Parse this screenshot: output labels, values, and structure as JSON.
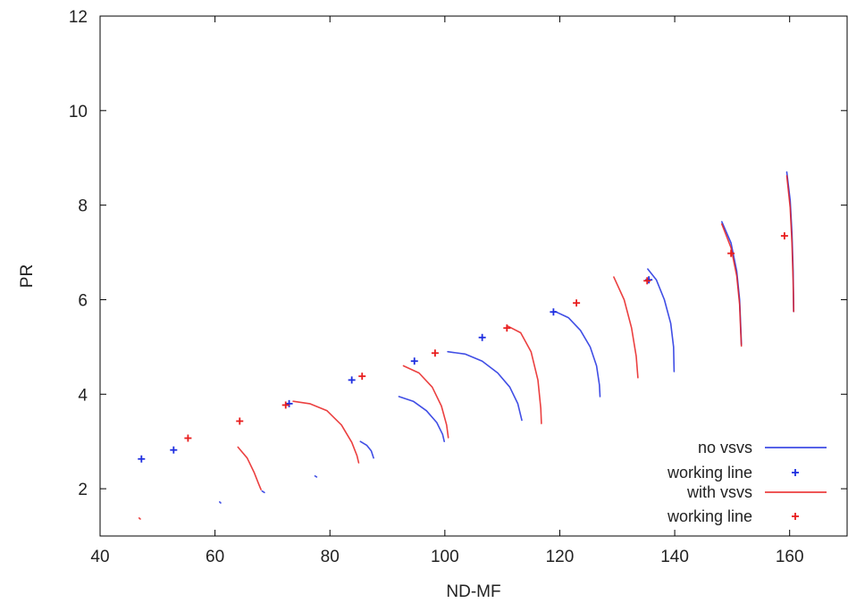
{
  "chart_data": {
    "type": "line",
    "title": "",
    "xlabel": "ND-MF",
    "ylabel": "PR",
    "xlim": [
      40,
      170
    ],
    "ylim": [
      1,
      12
    ],
    "xticks": [
      "40",
      "60",
      "80",
      "100",
      "120",
      "140",
      "160"
    ],
    "yticks": [
      "2",
      "4",
      "6",
      "8",
      "10",
      "12"
    ],
    "grid": false,
    "legend_position": "bottom-right",
    "colors": {
      "no_vsvs": "#1f2fe0",
      "with_vsvs": "#e81e1e",
      "overlap": "#8a2255"
    },
    "series": [
      {
        "name": "no vsvs",
        "style": "line",
        "curves": [
          [
            [
              60.8,
              1.72
            ],
            [
              61.0,
              1.7
            ]
          ],
          [
            [
              68.2,
              1.95
            ],
            [
              68.6,
              1.92
            ]
          ],
          [
            [
              77.4,
              2.27
            ],
            [
              77.7,
              2.25
            ]
          ],
          [
            [
              85.3,
              3.0
            ],
            [
              86.4,
              2.92
            ],
            [
              87.2,
              2.8
            ],
            [
              87.6,
              2.65
            ]
          ],
          [
            [
              92.0,
              3.95
            ],
            [
              94.5,
              3.85
            ],
            [
              96.8,
              3.65
            ],
            [
              98.6,
              3.4
            ],
            [
              99.6,
              3.15
            ],
            [
              99.9,
              3.0
            ]
          ],
          [
            [
              100.5,
              4.9
            ],
            [
              103.5,
              4.85
            ],
            [
              106.5,
              4.7
            ],
            [
              109.2,
              4.45
            ],
            [
              111.3,
              4.15
            ],
            [
              112.7,
              3.8
            ],
            [
              113.4,
              3.45
            ]
          ],
          [
            [
              119.2,
              5.75
            ],
            [
              121.5,
              5.62
            ],
            [
              123.6,
              5.35
            ],
            [
              125.3,
              5.0
            ],
            [
              126.4,
              4.6
            ],
            [
              126.9,
              4.2
            ],
            [
              127.0,
              3.95
            ]
          ],
          [
            [
              135.3,
              6.65
            ],
            [
              136.8,
              6.42
            ],
            [
              138.2,
              6.0
            ],
            [
              139.3,
              5.5
            ],
            [
              139.8,
              5.0
            ],
            [
              139.9,
              4.48
            ]
          ],
          [
            [
              148.2,
              7.65
            ],
            [
              149.8,
              7.2
            ],
            [
              150.8,
              6.6
            ],
            [
              151.3,
              6.0
            ],
            [
              151.5,
              5.4
            ],
            [
              151.6,
              5.05
            ]
          ],
          [
            [
              159.5,
              8.7
            ],
            [
              160.1,
              8.1
            ],
            [
              160.4,
              7.4
            ],
            [
              160.6,
              6.6
            ],
            [
              160.7,
              5.75
            ]
          ]
        ]
      },
      {
        "name": "working line",
        "style": "points",
        "points": [
          [
            47.2,
            2.63
          ],
          [
            52.8,
            2.82
          ],
          [
            72.9,
            3.8
          ],
          [
            83.8,
            4.3
          ],
          [
            94.7,
            4.7
          ],
          [
            106.5,
            5.2
          ],
          [
            118.9,
            5.74
          ],
          [
            135.5,
            6.42
          ]
        ]
      },
      {
        "name": "with vsvs",
        "style": "line",
        "curves": [
          [
            [
              46.8,
              1.38
            ],
            [
              47.0,
              1.36
            ]
          ],
          [
            [
              64.0,
              2.88
            ],
            [
              65.6,
              2.65
            ],
            [
              66.8,
              2.35
            ],
            [
              67.6,
              2.1
            ],
            [
              68.0,
              1.98
            ]
          ],
          [
            [
              73.6,
              3.85
            ],
            [
              76.5,
              3.8
            ],
            [
              79.5,
              3.65
            ],
            [
              82.0,
              3.35
            ],
            [
              83.8,
              2.98
            ],
            [
              84.7,
              2.7
            ],
            [
              85.0,
              2.55
            ]
          ],
          [
            [
              92.8,
              4.6
            ],
            [
              95.5,
              4.45
            ],
            [
              97.8,
              4.15
            ],
            [
              99.4,
              3.75
            ],
            [
              100.3,
              3.35
            ],
            [
              100.6,
              3.08
            ]
          ],
          [
            [
              110.8,
              5.45
            ],
            [
              113.2,
              5.3
            ],
            [
              115.0,
              4.9
            ],
            [
              116.2,
              4.3
            ],
            [
              116.7,
              3.7
            ],
            [
              116.8,
              3.38
            ]
          ],
          [
            [
              129.4,
              6.48
            ],
            [
              131.2,
              6.0
            ],
            [
              132.5,
              5.4
            ],
            [
              133.3,
              4.8
            ],
            [
              133.6,
              4.35
            ]
          ],
          [
            [
              148.2,
              7.6
            ],
            [
              149.8,
              7.1
            ],
            [
              150.8,
              6.5
            ],
            [
              151.3,
              5.9
            ],
            [
              151.5,
              5.3
            ],
            [
              151.6,
              5.02
            ]
          ],
          [
            [
              159.5,
              8.62
            ],
            [
              160.1,
              7.95
            ],
            [
              160.4,
              7.2
            ],
            [
              160.6,
              6.4
            ],
            [
              160.7,
              5.75
            ]
          ]
        ]
      },
      {
        "name": "working line",
        "style": "points",
        "points": [
          [
            55.3,
            3.07
          ],
          [
            64.3,
            3.43
          ],
          [
            72.3,
            3.77
          ],
          [
            85.6,
            4.38
          ],
          [
            98.3,
            4.87
          ],
          [
            110.8,
            5.4
          ],
          [
            122.9,
            5.93
          ],
          [
            135.2,
            6.4
          ],
          [
            149.8,
            6.98
          ],
          [
            159.1,
            7.35
          ]
        ]
      }
    ],
    "legend": [
      {
        "label": "no vsvs",
        "symbol": "line",
        "color": "#1f2fe0"
      },
      {
        "label": "working line",
        "symbol": "plus",
        "color": "#1f2fe0"
      },
      {
        "label": "with vsvs",
        "symbol": "line",
        "color": "#e81e1e"
      },
      {
        "label": "working line",
        "symbol": "plus",
        "color": "#e81e1e"
      }
    ]
  }
}
